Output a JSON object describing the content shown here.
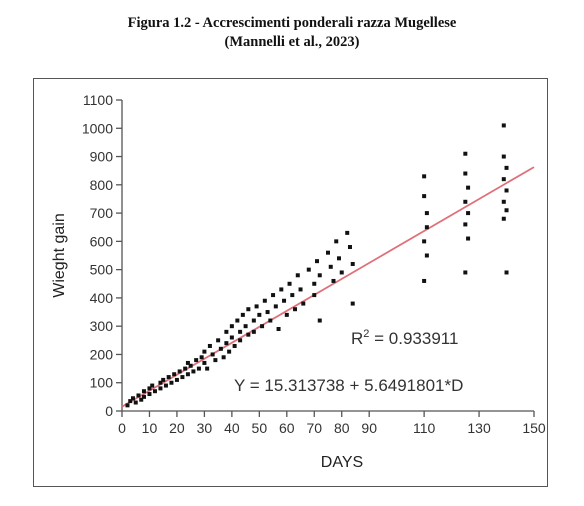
{
  "caption": {
    "line1": "Figura 1.2 - Accrescimenti ponderali razza Mugellese",
    "line2": "(Mannelli et al., 2023)"
  },
  "chart_data": {
    "type": "scatter",
    "xlabel": "DAYS",
    "ylabel": "Wieght gain",
    "xlim": [
      0,
      150
    ],
    "ylim": [
      0,
      1100
    ],
    "xticks": [
      0,
      10,
      20,
      30,
      40,
      50,
      60,
      70,
      80,
      90,
      110,
      130,
      150
    ],
    "yticks": [
      0,
      100,
      200,
      300,
      400,
      500,
      600,
      700,
      800,
      900,
      1000,
      1100
    ],
    "grid": false,
    "point_color": "#111111",
    "line_color": "#e0707a",
    "annotations": {
      "r2_prefix": "R",
      "r2_sup": "2",
      "r2_suffix": " = 0.933911",
      "equation": "Y = 15.313738 + 5.6491801*D"
    },
    "trendline": {
      "intercept": 15.313738,
      "slope": 5.6491801,
      "x_range": [
        0,
        150
      ]
    },
    "points": [
      {
        "x": 2,
        "y": 20
      },
      {
        "x": 3,
        "y": 35
      },
      {
        "x": 4,
        "y": 45
      },
      {
        "x": 5,
        "y": 30
      },
      {
        "x": 6,
        "y": 55
      },
      {
        "x": 7,
        "y": 40
      },
      {
        "x": 8,
        "y": 70
      },
      {
        "x": 8,
        "y": 50
      },
      {
        "x": 10,
        "y": 60
      },
      {
        "x": 10,
        "y": 80
      },
      {
        "x": 11,
        "y": 90
      },
      {
        "x": 12,
        "y": 70
      },
      {
        "x": 14,
        "y": 80
      },
      {
        "x": 14,
        "y": 100
      },
      {
        "x": 15,
        "y": 110
      },
      {
        "x": 16,
        "y": 90
      },
      {
        "x": 17,
        "y": 120
      },
      {
        "x": 18,
        "y": 100
      },
      {
        "x": 19,
        "y": 130
      },
      {
        "x": 20,
        "y": 110
      },
      {
        "x": 21,
        "y": 140
      },
      {
        "x": 22,
        "y": 120
      },
      {
        "x": 23,
        "y": 150
      },
      {
        "x": 24,
        "y": 170
      },
      {
        "x": 24,
        "y": 130
      },
      {
        "x": 25,
        "y": 160
      },
      {
        "x": 26,
        "y": 140
      },
      {
        "x": 27,
        "y": 180
      },
      {
        "x": 28,
        "y": 150
      },
      {
        "x": 29,
        "y": 190
      },
      {
        "x": 30,
        "y": 170
      },
      {
        "x": 30,
        "y": 210
      },
      {
        "x": 31,
        "y": 150
      },
      {
        "x": 32,
        "y": 230
      },
      {
        "x": 33,
        "y": 200
      },
      {
        "x": 34,
        "y": 180
      },
      {
        "x": 35,
        "y": 250
      },
      {
        "x": 36,
        "y": 220
      },
      {
        "x": 37,
        "y": 190
      },
      {
        "x": 38,
        "y": 280
      },
      {
        "x": 38,
        "y": 240
      },
      {
        "x": 39,
        "y": 210
      },
      {
        "x": 40,
        "y": 300
      },
      {
        "x": 40,
        "y": 260
      },
      {
        "x": 41,
        "y": 230
      },
      {
        "x": 42,
        "y": 320
      },
      {
        "x": 43,
        "y": 280
      },
      {
        "x": 43,
        "y": 250
      },
      {
        "x": 44,
        "y": 340
      },
      {
        "x": 45,
        "y": 300
      },
      {
        "x": 46,
        "y": 270
      },
      {
        "x": 46,
        "y": 360
      },
      {
        "x": 48,
        "y": 320
      },
      {
        "x": 48,
        "y": 280
      },
      {
        "x": 49,
        "y": 370
      },
      {
        "x": 50,
        "y": 340
      },
      {
        "x": 51,
        "y": 300
      },
      {
        "x": 52,
        "y": 390
      },
      {
        "x": 53,
        "y": 350
      },
      {
        "x": 54,
        "y": 320
      },
      {
        "x": 55,
        "y": 410
      },
      {
        "x": 56,
        "y": 370
      },
      {
        "x": 57,
        "y": 290
      },
      {
        "x": 58,
        "y": 430
      },
      {
        "x": 59,
        "y": 390
      },
      {
        "x": 60,
        "y": 340
      },
      {
        "x": 61,
        "y": 450
      },
      {
        "x": 62,
        "y": 410
      },
      {
        "x": 63,
        "y": 360
      },
      {
        "x": 64,
        "y": 480
      },
      {
        "x": 65,
        "y": 430
      },
      {
        "x": 66,
        "y": 380
      },
      {
        "x": 68,
        "y": 500
      },
      {
        "x": 70,
        "y": 450
      },
      {
        "x": 70,
        "y": 410
      },
      {
        "x": 71,
        "y": 530
      },
      {
        "x": 72,
        "y": 480
      },
      {
        "x": 72,
        "y": 320
      },
      {
        "x": 75,
        "y": 560
      },
      {
        "x": 76,
        "y": 510
      },
      {
        "x": 77,
        "y": 460
      },
      {
        "x": 78,
        "y": 600
      },
      {
        "x": 79,
        "y": 540
      },
      {
        "x": 80,
        "y": 490
      },
      {
        "x": 82,
        "y": 630
      },
      {
        "x": 83,
        "y": 580
      },
      {
        "x": 84,
        "y": 520
      },
      {
        "x": 84,
        "y": 380
      },
      {
        "x": 110,
        "y": 830
      },
      {
        "x": 110,
        "y": 760
      },
      {
        "x": 111,
        "y": 700
      },
      {
        "x": 111,
        "y": 650
      },
      {
        "x": 110,
        "y": 600
      },
      {
        "x": 111,
        "y": 550
      },
      {
        "x": 110,
        "y": 460
      },
      {
        "x": 125,
        "y": 910
      },
      {
        "x": 125,
        "y": 840
      },
      {
        "x": 126,
        "y": 790
      },
      {
        "x": 125,
        "y": 740
      },
      {
        "x": 126,
        "y": 700
      },
      {
        "x": 125,
        "y": 660
      },
      {
        "x": 126,
        "y": 610
      },
      {
        "x": 125,
        "y": 490
      },
      {
        "x": 139,
        "y": 1010
      },
      {
        "x": 139,
        "y": 900
      },
      {
        "x": 140,
        "y": 860
      },
      {
        "x": 139,
        "y": 820
      },
      {
        "x": 140,
        "y": 780
      },
      {
        "x": 139,
        "y": 740
      },
      {
        "x": 140,
        "y": 710
      },
      {
        "x": 139,
        "y": 680
      },
      {
        "x": 140,
        "y": 490
      }
    ]
  }
}
